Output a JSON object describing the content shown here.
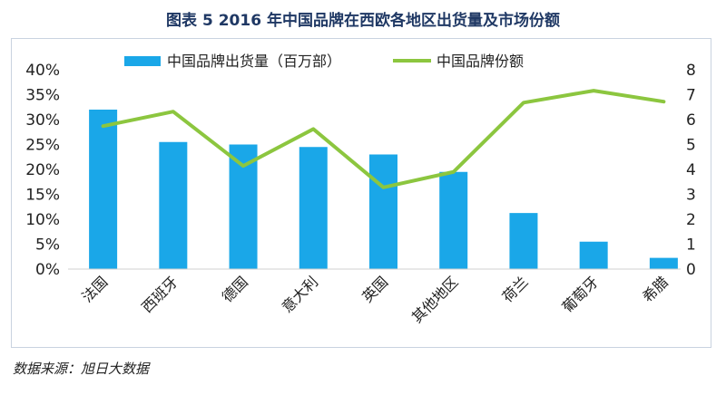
{
  "title": "图表 5   2016 年中国品牌在西欧各地区出货量及市场份额",
  "source": "数据来源：旭日大数据",
  "colors": {
    "bar": "#1aa7e8",
    "line": "#8cc63f",
    "title": "#1f3864"
  },
  "chart_data": {
    "type": "bar",
    "categories": [
      "法国",
      "西班牙",
      "德国",
      "意大利",
      "英国",
      "其他地区",
      "荷兰",
      "葡萄牙",
      "希腊"
    ],
    "series": [
      {
        "name": "中国品牌出货量（百万部）",
        "type": "bar",
        "axis": "right",
        "values": [
          6.4,
          5.1,
          5.0,
          4.9,
          4.6,
          3.9,
          2.25,
          1.1,
          0.45
        ]
      },
      {
        "name": "中国品牌份额",
        "type": "line",
        "axis": "left",
        "values": [
          0.287,
          0.316,
          0.207,
          0.281,
          0.164,
          0.195,
          0.334,
          0.358,
          0.336
        ]
      }
    ],
    "y_left": {
      "ticks": [
        "0%",
        "5%",
        "10%",
        "15%",
        "20%",
        "25%",
        "30%",
        "35%",
        "40%"
      ],
      "ylim": [
        0,
        0.4
      ]
    },
    "y_right": {
      "ticks": [
        "0",
        "1",
        "2",
        "3",
        "4",
        "5",
        "6",
        "7",
        "8"
      ],
      "ylim": [
        0,
        8
      ]
    },
    "legend": "top",
    "grid": false
  }
}
